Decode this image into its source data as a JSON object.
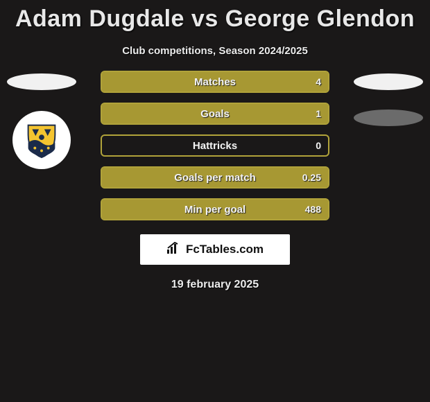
{
  "title": "Adam Dugdale vs George Glendon",
  "subtitle": "Club competitions, Season 2024/2025",
  "date": "19 february 2025",
  "attribution": "FcTables.com",
  "colors": {
    "background": "#1a1818",
    "bar_border": "#b1a33a",
    "bar_fill": "#a79833",
    "text": "#e8e8e8",
    "ellipse_light": "#f1f1f1",
    "ellipse_dark": "#6b6b6b"
  },
  "bars": [
    {
      "label": "Matches",
      "value": "4",
      "fill_pct": 100
    },
    {
      "label": "Goals",
      "value": "1",
      "fill_pct": 100
    },
    {
      "label": "Hattricks",
      "value": "0",
      "fill_pct": 0
    },
    {
      "label": "Goals per match",
      "value": "0.25",
      "fill_pct": 100
    },
    {
      "label": "Min per goal",
      "value": "488",
      "fill_pct": 100
    }
  ]
}
